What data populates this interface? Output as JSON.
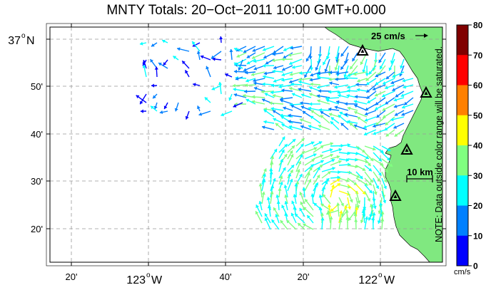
{
  "title": "MNTY Totals: 20−Oct−2011 10:00 GMT+0.000",
  "axes": {
    "x_ticks": [
      {
        "label": "20'",
        "deg": null
      },
      {
        "label": "123",
        "deg": "o",
        "suffix": "W"
      },
      {
        "label": "40'",
        "deg": null
      },
      {
        "label": "20'",
        "deg": null
      },
      {
        "label": "122",
        "deg": "o",
        "suffix": "W"
      }
    ],
    "y_ticks": [
      {
        "label": "37",
        "deg": "o",
        "suffix": "N"
      },
      {
        "label": "50'"
      },
      {
        "label": "40'"
      },
      {
        "label": "30'"
      },
      {
        "label": "20'"
      }
    ]
  },
  "reference_vector": {
    "label": "25 cm/s"
  },
  "scale_bar": {
    "label": "10 km"
  },
  "colorbar": {
    "ticks": [
      "80",
      "70",
      "60",
      "50",
      "40",
      "30",
      "20",
      "10",
      "0"
    ],
    "colors": [
      "#800000",
      "#ff0000",
      "#ff8000",
      "#ffff00",
      "#80ff80",
      "#00ffff",
      "#0080ff",
      "#0000ff"
    ],
    "units": "cm/s",
    "note": "NOTE: Data outside color range will be saturated."
  },
  "land_color": "#80e880",
  "stations": [
    "site-1",
    "site-2",
    "site-3",
    "site-4"
  ]
}
